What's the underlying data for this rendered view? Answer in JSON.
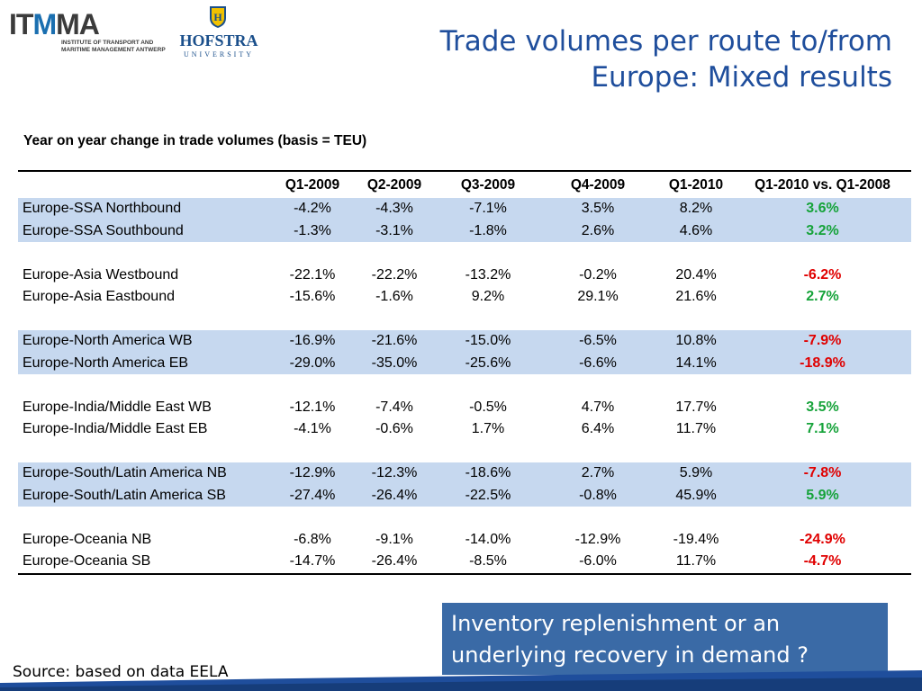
{
  "logos": {
    "itmma": {
      "word_it": "IT",
      "word_m": "M",
      "word_ma": "MA",
      "line1": "INSTITUTE OF TRANSPORT AND",
      "line2": "MARITIME MANAGEMENT ANTWERP"
    },
    "hofstra": {
      "name": "HOFSTRA",
      "subtitle": "UNIVERSITY"
    }
  },
  "title": {
    "line1": "Trade volumes per route to/from",
    "line2": "Europe: Mixed results"
  },
  "table": {
    "subtitle": "Year on year change in trade volumes (basis = TEU)",
    "headers": [
      "",
      "Q1-2009",
      "Q2-2009",
      "Q3-2009",
      "Q4-2009",
      "Q1-2010",
      "Q1-2010 vs. Q1-2008"
    ],
    "groups": [
      {
        "shaded": true,
        "rows": [
          {
            "route": "Europe-SSA Northbound",
            "values": [
              "-4.2%",
              "-4.3%",
              "-7.1%",
              "3.5%",
              "8.2%"
            ],
            "change": "3.6%",
            "dir": "pos"
          },
          {
            "route": "Europe-SSA Southbound",
            "values": [
              "-1.3%",
              "-3.1%",
              "-1.8%",
              "2.6%",
              "4.6%"
            ],
            "change": "3.2%",
            "dir": "pos"
          }
        ]
      },
      {
        "shaded": false,
        "rows": [
          {
            "route": "Europe-Asia Westbound",
            "values": [
              "-22.1%",
              "-22.2%",
              "-13.2%",
              "-0.2%",
              "20.4%"
            ],
            "change": "-6.2%",
            "dir": "neg"
          },
          {
            "route": "Europe-Asia Eastbound",
            "values": [
              "-15.6%",
              "-1.6%",
              "9.2%",
              "29.1%",
              "21.6%"
            ],
            "change": "2.7%",
            "dir": "pos"
          }
        ]
      },
      {
        "shaded": true,
        "rows": [
          {
            "route": "Europe-North America WB",
            "values": [
              "-16.9%",
              "-21.6%",
              "-15.0%",
              "-6.5%",
              "10.8%"
            ],
            "change": "-7.9%",
            "dir": "neg"
          },
          {
            "route": "Europe-North America EB",
            "values": [
              "-29.0%",
              "-35.0%",
              "-25.6%",
              "-6.6%",
              "14.1%"
            ],
            "change": "-18.9%",
            "dir": "neg"
          }
        ]
      },
      {
        "shaded": false,
        "rows": [
          {
            "route": "Europe-India/Middle East WB",
            "values": [
              "-12.1%",
              "-7.4%",
              "-0.5%",
              "4.7%",
              "17.7%"
            ],
            "change": "3.5%",
            "dir": "pos"
          },
          {
            "route": "Europe-India/Middle East EB",
            "values": [
              "-4.1%",
              "-0.6%",
              "1.7%",
              "6.4%",
              "11.7%"
            ],
            "change": "7.1%",
            "dir": "pos"
          }
        ]
      },
      {
        "shaded": true,
        "rows": [
          {
            "route": "Europe-South/Latin America NB",
            "values": [
              "-12.9%",
              "-12.3%",
              "-18.6%",
              "2.7%",
              "5.9%"
            ],
            "change": "-7.8%",
            "dir": "neg"
          },
          {
            "route": "Europe-South/Latin America SB",
            "values": [
              "-27.4%",
              "-26.4%",
              "-22.5%",
              "-0.8%",
              "45.9%"
            ],
            "change": "5.9%",
            "dir": "pos"
          }
        ]
      },
      {
        "shaded": false,
        "rows": [
          {
            "route": "Europe-Oceania NB",
            "values": [
              "-6.8%",
              "-9.1%",
              "-14.0%",
              "-12.9%",
              "-19.4%"
            ],
            "change": "-24.9%",
            "dir": "neg"
          },
          {
            "route": "Europe-Oceania SB",
            "values": [
              "-14.7%",
              "-26.4%",
              "-8.5%",
              "-6.0%",
              "11.7%"
            ],
            "change": "-4.7%",
            "dir": "neg"
          }
        ]
      }
    ]
  },
  "callout": {
    "line1": "Inventory replenishment or an",
    "line2": "underlying recovery in demand ?"
  },
  "source": "Source: based on data EELA",
  "colors": {
    "title": "#1f4e9c",
    "shade": "#c6d8ef",
    "positive": "#16a33a",
    "negative": "#e00000",
    "callout_bg": "#3a6aa6"
  }
}
